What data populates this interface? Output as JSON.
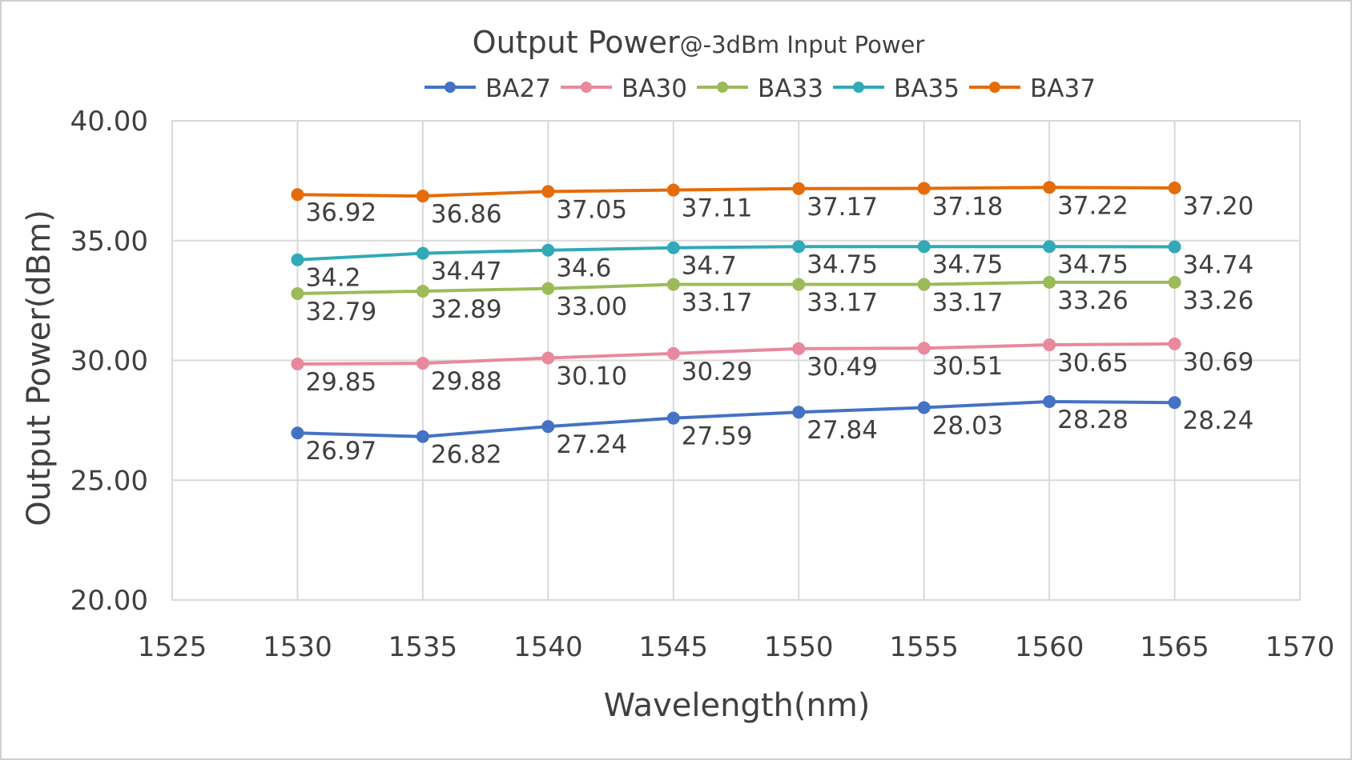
{
  "chart_data": {
    "type": "line",
    "title": "Output Power",
    "subtitle": "@-3dBm Input Power",
    "xlabel": "Wavelength(nm)",
    "ylabel": "Output Power(dBm)",
    "xlim": [
      1525,
      1570
    ],
    "ylim": [
      20,
      40
    ],
    "x_ticks": [
      "1525",
      "1530",
      "1535",
      "1540",
      "1545",
      "1550",
      "1555",
      "1560",
      "1565",
      "1570"
    ],
    "y_ticks": [
      "20.00",
      "25.00",
      "30.00",
      "35.00",
      "40.00"
    ],
    "grid": true,
    "legend_position": "top",
    "x": [
      1530,
      1535,
      1540,
      1545,
      1550,
      1555,
      1560,
      1565
    ],
    "series": [
      {
        "name": "BA27",
        "color": "#4472c4",
        "values": [
          26.97,
          26.82,
          27.24,
          27.59,
          27.84,
          28.03,
          28.28,
          28.24
        ],
        "labels": [
          "26.97",
          "26.82",
          "27.24",
          "27.59",
          "27.84",
          "28.03",
          "28.28",
          "28.24"
        ]
      },
      {
        "name": "BA30",
        "color": "#e8899e",
        "values": [
          29.85,
          29.88,
          30.1,
          30.29,
          30.49,
          30.51,
          30.65,
          30.69
        ],
        "labels": [
          "29.85",
          "29.88",
          "30.10",
          "30.29",
          "30.49",
          "30.51",
          "30.65",
          "30.69"
        ]
      },
      {
        "name": "BA33",
        "color": "#9bbb59",
        "values": [
          32.79,
          32.89,
          33.0,
          33.17,
          33.17,
          33.17,
          33.26,
          33.26
        ],
        "labels": [
          "32.79",
          "32.89",
          "33.00",
          "33.17",
          "33.17",
          "33.17",
          "33.26",
          "33.26"
        ]
      },
      {
        "name": "BA35",
        "color": "#31a9b8",
        "values": [
          34.2,
          34.47,
          34.6,
          34.7,
          34.75,
          34.75,
          34.75,
          34.74
        ],
        "labels": [
          "34.2",
          "34.47",
          "34.6",
          "34.7",
          "34.75",
          "34.75",
          "34.75",
          "34.74"
        ]
      },
      {
        "name": "BA37",
        "color": "#e46c0a",
        "values": [
          36.92,
          36.86,
          37.05,
          37.11,
          37.17,
          37.18,
          37.22,
          37.2
        ],
        "labels": [
          "36.92",
          "36.86",
          "37.05",
          "37.11",
          "37.17",
          "37.18",
          "37.22",
          "37.20"
        ]
      }
    ]
  }
}
